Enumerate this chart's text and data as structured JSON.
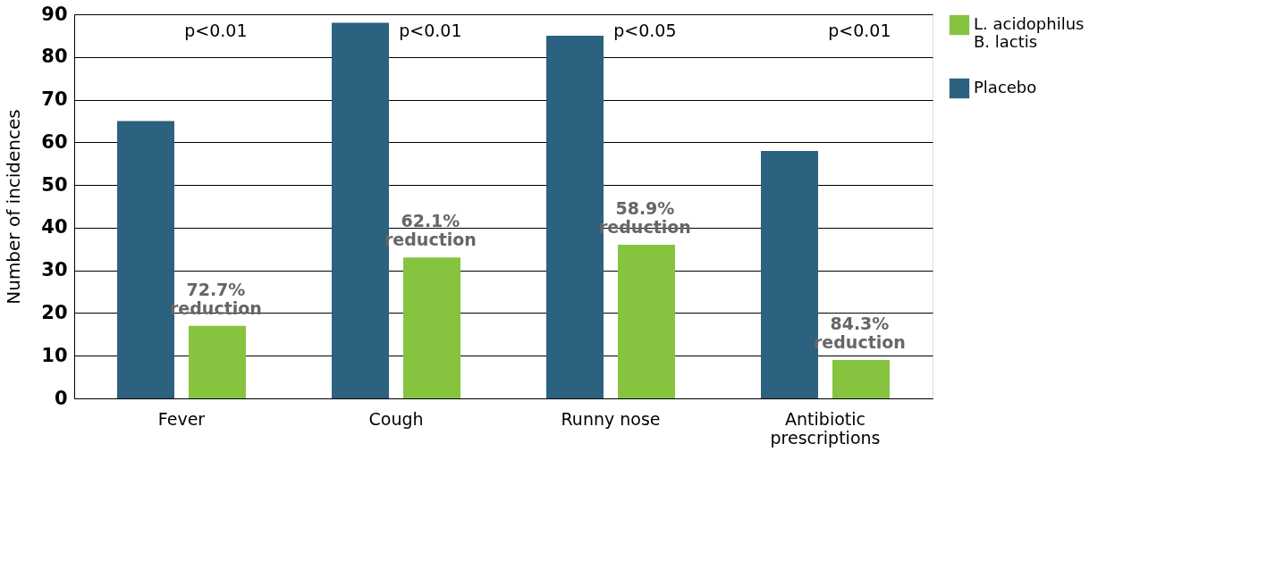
{
  "chart_data": {
    "type": "bar",
    "ylabel": "Number of incidences",
    "categories": [
      "Fever",
      "Cough",
      "Runny nose",
      "Antibiotic\nprescriptions"
    ],
    "series": [
      {
        "name": "Placebo",
        "color": "#2c617f",
        "values": [
          65,
          88,
          85,
          58
        ]
      },
      {
        "name": "L. acidophilus\nB. lactis",
        "color": "#86c440",
        "values": [
          17,
          33,
          36,
          9
        ]
      }
    ],
    "ylim": [
      0,
      90
    ],
    "yticks": [
      0,
      10,
      20,
      30,
      40,
      50,
      60,
      70,
      80,
      90
    ],
    "grid": "y",
    "legend": "top right",
    "annotations": [
      "p<0.01",
      "p<0.01",
      "p<0.05",
      "p<0.01",
      "72.7%\nreduction",
      "62.1%\nreduction",
      "58.9%\nreduction",
      "84.3%\nreduction"
    ]
  }
}
